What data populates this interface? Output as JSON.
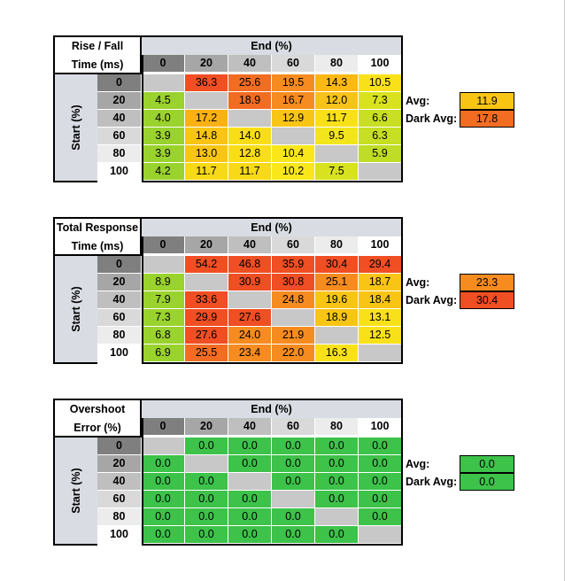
{
  "tables": [
    {
      "title_line1": "Rise / Fall",
      "title_line2": "Time (ms)",
      "end_label": "End (%)",
      "start_label": "Start (%)",
      "col_headers": [
        "0",
        "20",
        "40",
        "60",
        "80",
        "100"
      ],
      "row_headers": [
        "0",
        "20",
        "40",
        "60",
        "80",
        "100"
      ],
      "cells": [
        [
          "",
          "36.3",
          "25.6",
          "19.5",
          "14.3",
          "10.5"
        ],
        [
          "4.5",
          "",
          "18.9",
          "16.7",
          "12.0",
          "7.3"
        ],
        [
          "4.0",
          "17.2",
          "",
          "12.9",
          "11.7",
          "6.6"
        ],
        [
          "3.9",
          "14.8",
          "14.0",
          "",
          "9.5",
          "6.3"
        ],
        [
          "3.9",
          "13.0",
          "12.8",
          "10.4",
          "",
          "5.9"
        ],
        [
          "4.2",
          "11.7",
          "11.7",
          "10.2",
          "7.5",
          ""
        ]
      ],
      "colors": [
        [
          "#c8c8c8",
          "#f04e23",
          "#f26c22",
          "#f68b1f",
          "#fcb813",
          "#f9e11a"
        ],
        [
          "#9ad22e",
          "#c8c8c8",
          "#f26c22",
          "#f68b1f",
          "#f7c21a",
          "#d8e21e"
        ],
        [
          "#9ad22e",
          "#f9b115",
          "#c8c8c8",
          "#f8c515",
          "#f9e11a",
          "#c9df24"
        ],
        [
          "#9ad22e",
          "#f8c515",
          "#f9de17",
          "#c8c8c8",
          "#f2e51c",
          "#c7df23"
        ],
        [
          "#9ad22e",
          "#f8c515",
          "#f9de17",
          "#f9e71b",
          "#c8c8c8",
          "#bfdc26"
        ],
        [
          "#9ad22e",
          "#f8d918",
          "#f8d918",
          "#f9e71b",
          "#d8e21e",
          "#c8c8c8"
        ]
      ],
      "avg_label": "Avg:",
      "avg_value": "11.9",
      "avg_color": "#f8c515",
      "dark_avg_label": "Dark Avg:",
      "dark_avg_value": "17.8",
      "dark_avg_color": "#f26c22"
    },
    {
      "title_line1": "Total Response",
      "title_line2": "Time (ms)",
      "end_label": "End (%)",
      "start_label": "Start (%)",
      "col_headers": [
        "0",
        "20",
        "40",
        "60",
        "80",
        "100"
      ],
      "row_headers": [
        "0",
        "20",
        "40",
        "60",
        "80",
        "100"
      ],
      "cells": [
        [
          "",
          "54.2",
          "46.8",
          "35.9",
          "30.4",
          "29.4"
        ],
        [
          "8.9",
          "",
          "30.9",
          "30.8",
          "25.1",
          "18.7"
        ],
        [
          "7.9",
          "33.6",
          "",
          "24.8",
          "19.6",
          "18.4"
        ],
        [
          "7.3",
          "29.9",
          "27.6",
          "",
          "18.9",
          "13.1"
        ],
        [
          "6.8",
          "27.6",
          "24.0",
          "21.9",
          "",
          "12.5"
        ],
        [
          "6.9",
          "25.5",
          "23.4",
          "22.0",
          "16.3",
          ""
        ]
      ],
      "colors": [
        [
          "#c8c8c8",
          "#f04e23",
          "#f04e23",
          "#f04e23",
          "#f04e23",
          "#f04e23"
        ],
        [
          "#9ad22e",
          "#c8c8c8",
          "#f04e23",
          "#f04e23",
          "#f68b1f",
          "#f8c515"
        ],
        [
          "#9ad22e",
          "#f04e23",
          "#c8c8c8",
          "#f68b1f",
          "#f8c515",
          "#f8c515"
        ],
        [
          "#9ad22e",
          "#f04e23",
          "#f04e23",
          "#c8c8c8",
          "#f8c515",
          "#f9e11a"
        ],
        [
          "#9ad22e",
          "#f04e23",
          "#f68b1f",
          "#f68b1f",
          "#c8c8c8",
          "#f9e11a"
        ],
        [
          "#9ad22e",
          "#f26c22",
          "#f68b1f",
          "#f68b1f",
          "#f9e11a",
          "#c8c8c8"
        ]
      ],
      "avg_label": "Avg:",
      "avg_value": "23.3",
      "avg_color": "#f68b1f",
      "dark_avg_label": "Dark Avg:",
      "dark_avg_value": "30.4",
      "dark_avg_color": "#f04e23"
    },
    {
      "title_line1": "Overshoot",
      "title_line2": "Error (%)",
      "end_label": "End (%)",
      "start_label": "Start (%)",
      "col_headers": [
        "0",
        "20",
        "40",
        "60",
        "80",
        "100"
      ],
      "row_headers": [
        "0",
        "20",
        "40",
        "60",
        "80",
        "100"
      ],
      "cells": [
        [
          "",
          "0.0",
          "0.0",
          "0.0",
          "0.0",
          "0.0"
        ],
        [
          "0.0",
          "",
          "0.0",
          "0.0",
          "0.0",
          "0.0"
        ],
        [
          "0.0",
          "0.0",
          "",
          "0.0",
          "0.0",
          "0.0"
        ],
        [
          "0.0",
          "0.0",
          "0.0",
          "",
          "0.0",
          "0.0"
        ],
        [
          "0.0",
          "0.0",
          "0.0",
          "0.0",
          "",
          "0.0"
        ],
        [
          "0.0",
          "0.0",
          "0.0",
          "0.0",
          "0.0",
          ""
        ]
      ],
      "colors": [
        [
          "#c8c8c8",
          "#3dc24a",
          "#3dc24a",
          "#3dc24a",
          "#3dc24a",
          "#3dc24a"
        ],
        [
          "#3dc24a",
          "#c8c8c8",
          "#3dc24a",
          "#3dc24a",
          "#3dc24a",
          "#3dc24a"
        ],
        [
          "#3dc24a",
          "#3dc24a",
          "#c8c8c8",
          "#3dc24a",
          "#3dc24a",
          "#3dc24a"
        ],
        [
          "#3dc24a",
          "#3dc24a",
          "#3dc24a",
          "#c8c8c8",
          "#3dc24a",
          "#3dc24a"
        ],
        [
          "#3dc24a",
          "#3dc24a",
          "#3dc24a",
          "#3dc24a",
          "#c8c8c8",
          "#3dc24a"
        ],
        [
          "#3dc24a",
          "#3dc24a",
          "#3dc24a",
          "#3dc24a",
          "#3dc24a",
          "#c8c8c8"
        ]
      ],
      "avg_label": "Avg:",
      "avg_value": "0.0",
      "avg_color": "#3dc24a",
      "dark_avg_label": "Dark Avg:",
      "dark_avg_value": "0.0",
      "dark_avg_color": "#3dc24a"
    }
  ],
  "header_colors": [
    "#7f7f7f",
    "#a6a6a6",
    "#bfbfbf",
    "#d9d9d9",
    "#ececec",
    "#ffffff"
  ]
}
